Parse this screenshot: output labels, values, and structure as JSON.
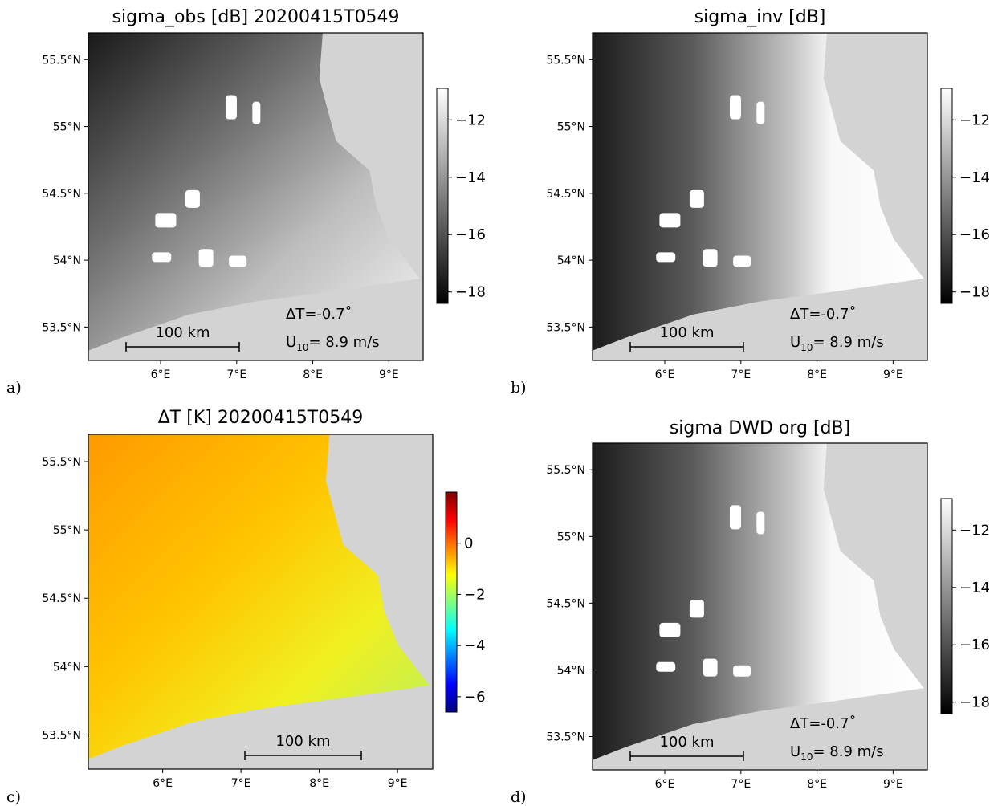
{
  "chart_data": [
    {
      "id": "a",
      "type": "heatmap",
      "panel_label": "a)",
      "title": "sigma_obs [dB] 20200415T0549",
      "x_ticks": [
        "6°E",
        "7°E",
        "8°E",
        "9°E"
      ],
      "x_tick_values": [
        6,
        7,
        8,
        9
      ],
      "y_ticks": [
        "55.5°N",
        "55°N",
        "54.5°N",
        "54°N",
        "53.5°N"
      ],
      "y_tick_values": [
        55.5,
        55,
        54.5,
        54,
        53.5
      ],
      "xlim": [
        5.05,
        9.45
      ],
      "ylim": [
        53.25,
        55.7
      ],
      "colormap": "gray",
      "colorbar_range": [
        -18.4,
        -10.9
      ],
      "colorbar_ticks": [
        "−12",
        "−14",
        "−16",
        "−18"
      ],
      "colorbar_tick_values": [
        -12,
        -14,
        -16,
        -18
      ],
      "scalebar_label": "100 km",
      "annotation_dt": "ΔT=-0.7˚",
      "annotation_u": "U",
      "annotation_u_sub": "10",
      "annotation_u_val": "= 8.9 m/s"
    },
    {
      "id": "b",
      "type": "heatmap",
      "panel_label": "b)",
      "title": "sigma_inv [dB]",
      "x_ticks": [
        "6°E",
        "7°E",
        "8°E",
        "9°E"
      ],
      "x_tick_values": [
        6,
        7,
        8,
        9
      ],
      "y_ticks": [
        "55.5°N",
        "55°N",
        "54.5°N",
        "54°N",
        "53.5°N"
      ],
      "y_tick_values": [
        55.5,
        55,
        54.5,
        54,
        53.5
      ],
      "xlim": [
        5.05,
        9.45
      ],
      "ylim": [
        53.25,
        55.7
      ],
      "colormap": "gray",
      "colorbar_range": [
        -18.4,
        -10.9
      ],
      "colorbar_ticks": [
        "−12",
        "−14",
        "−16",
        "−18"
      ],
      "colorbar_tick_values": [
        -12,
        -14,
        -16,
        -18
      ],
      "scalebar_label": "100 km",
      "annotation_dt": "ΔT=-0.7˚",
      "annotation_u": "U",
      "annotation_u_sub": "10",
      "annotation_u_val": "= 8.9 m/s"
    },
    {
      "id": "c",
      "type": "heatmap",
      "panel_label": "c)",
      "title": "ΔT [K]   20200415T0549",
      "x_ticks": [
        "6°E",
        "7°E",
        "8°E",
        "9°E"
      ],
      "x_tick_values": [
        6,
        7,
        8,
        9
      ],
      "y_ticks": [
        "55.5°N",
        "55°N",
        "54.5°N",
        "54°N",
        "53.5°N"
      ],
      "y_tick_values": [
        55.5,
        55,
        54.5,
        54,
        53.5
      ],
      "xlim": [
        5.05,
        9.45
      ],
      "ylim": [
        53.25,
        55.7
      ],
      "colormap": "jet",
      "colorbar_range": [
        -6.6,
        2.0
      ],
      "colorbar_ticks": [
        "0",
        "−2",
        "−4",
        "−6"
      ],
      "colorbar_tick_values": [
        0,
        -2,
        -4,
        -6
      ],
      "scalebar_label": "100 km"
    },
    {
      "id": "d",
      "type": "heatmap",
      "panel_label": "d)",
      "title": "sigma DWD org [dB]",
      "x_ticks": [
        "6°E",
        "7°E",
        "8°E",
        "9°E"
      ],
      "x_tick_values": [
        6,
        7,
        8,
        9
      ],
      "y_ticks": [
        "55.5°N",
        "55°N",
        "54.5°N",
        "54°N",
        "53.5°N"
      ],
      "y_tick_values": [
        55.5,
        55,
        54.5,
        54,
        53.5
      ],
      "xlim": [
        5.05,
        9.45
      ],
      "ylim": [
        53.25,
        55.7
      ],
      "colormap": "gray",
      "colorbar_range": [
        -18.4,
        -10.9
      ],
      "colorbar_ticks": [
        "−12",
        "−14",
        "−16",
        "−18"
      ],
      "colorbar_tick_values": [
        -12,
        -14,
        -16,
        -18
      ],
      "scalebar_label": "100 km",
      "annotation_dt": "ΔT=-0.7˚",
      "annotation_u": "U",
      "annotation_u_sub": "10",
      "annotation_u_val": "= 8.9 m/s"
    }
  ]
}
